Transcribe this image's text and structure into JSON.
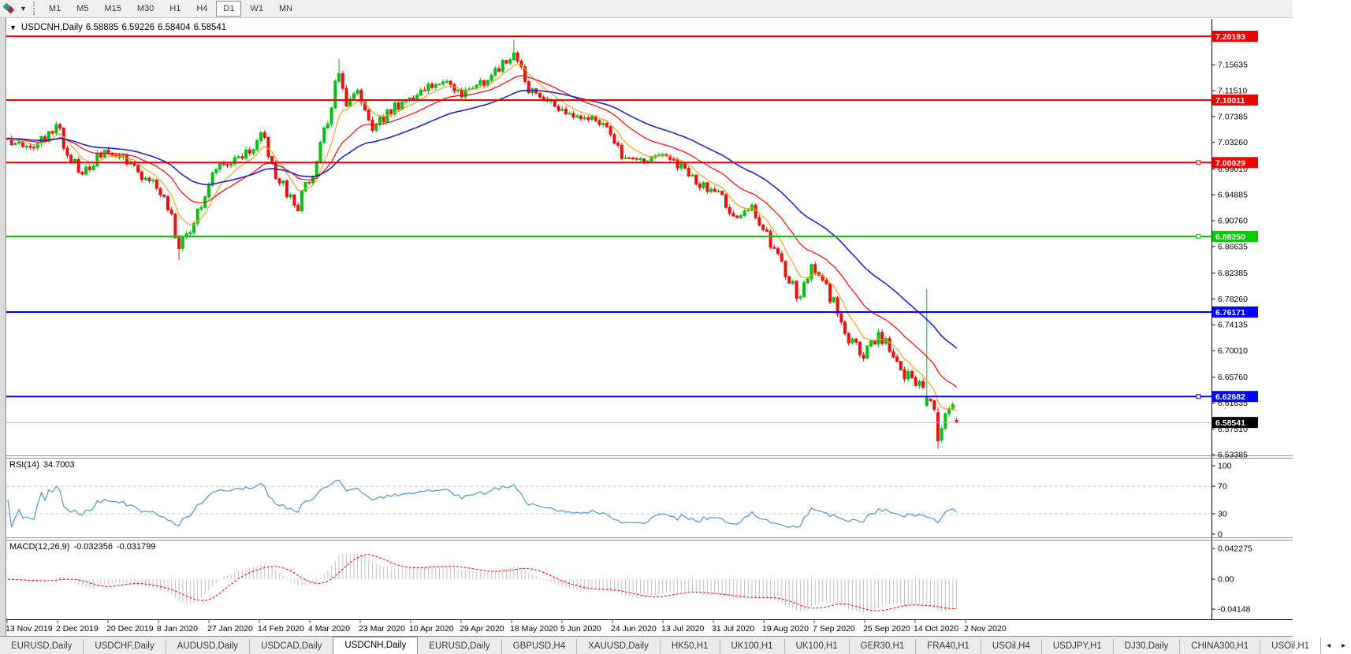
{
  "toolbar": {
    "timeframes": [
      {
        "label": "M1",
        "active": false
      },
      {
        "label": "M5",
        "active": false
      },
      {
        "label": "M15",
        "active": false
      },
      {
        "label": "M30",
        "active": false
      },
      {
        "label": "H1",
        "active": false
      },
      {
        "label": "H4",
        "active": false
      },
      {
        "label": "D1",
        "active": true
      },
      {
        "label": "W1",
        "active": false
      },
      {
        "label": "MN",
        "active": false
      }
    ]
  },
  "chart": {
    "title": {
      "dropdown": "▼",
      "symbol": "USDCNH,Daily",
      "open": "6.58885",
      "high": "6.59226",
      "low": "6.58404",
      "close": "6.58541"
    },
    "price_axis_ticks": [
      "7.15635",
      "7.11510",
      "7.07385",
      "7.03260",
      "6.99010",
      "6.94885",
      "6.90760",
      "6.86635",
      "6.82385",
      "6.78260",
      "6.74135",
      "6.70010",
      "6.65760",
      "6.61635",
      "6.57510",
      "6.53385"
    ],
    "hlines": [
      {
        "price": "7.20193",
        "value": 7.20193,
        "color": "#ee0000",
        "handle": false
      },
      {
        "price": "7.10011",
        "value": 7.10011,
        "color": "#ee0000",
        "handle": false
      },
      {
        "price": "7.00029",
        "value": 7.00029,
        "color": "#ee0000",
        "handle": true
      },
      {
        "price": "6.88250",
        "value": 6.8825,
        "color": "#00cc00",
        "handle": true
      },
      {
        "price": "6.76171",
        "value": 6.76171,
        "color": "#0000ff",
        "handle": false
      },
      {
        "price": "6.62682",
        "value": 6.62682,
        "color": "#0000ff",
        "handle": true
      }
    ],
    "current_price": {
      "label": "6.58541",
      "value": 6.58541
    },
    "series": {
      "count": 256,
      "anchors": [
        [
          0,
          7.035
        ],
        [
          6,
          7.025
        ],
        [
          13,
          7.055
        ],
        [
          17,
          7.01
        ],
        [
          20,
          6.985
        ],
        [
          26,
          7.02
        ],
        [
          32,
          7.005
        ],
        [
          37,
          6.975
        ],
        [
          42,
          6.945
        ],
        [
          46,
          6.868
        ],
        [
          50,
          6.905
        ],
        [
          56,
          6.99
        ],
        [
          61,
          7.005
        ],
        [
          65,
          7.02
        ],
        [
          68,
          7.05
        ],
        [
          72,
          6.975
        ],
        [
          78,
          6.93
        ],
        [
          82,
          6.99
        ],
        [
          84,
          7.03
        ],
        [
          86,
          7.06
        ],
        [
          88,
          7.12
        ],
        [
          89,
          7.145
        ],
        [
          91,
          7.1
        ],
        [
          94,
          7.115
        ],
        [
          98,
          7.06
        ],
        [
          101,
          7.07
        ],
        [
          104,
          7.09
        ],
        [
          109,
          7.1
        ],
        [
          114,
          7.125
        ],
        [
          118,
          7.132
        ],
        [
          122,
          7.11
        ],
        [
          127,
          7.125
        ],
        [
          132,
          7.15
        ],
        [
          135,
          7.165
        ],
        [
          136,
          7.172
        ],
        [
          138,
          7.15
        ],
        [
          139,
          7.13
        ],
        [
          144,
          7.1
        ],
        [
          149,
          7.08
        ],
        [
          155,
          7.073
        ],
        [
          160,
          7.058
        ],
        [
          163,
          7.03
        ],
        [
          165,
          7.012
        ],
        [
          171,
          7.003
        ],
        [
          176,
          7.012
        ],
        [
          180,
          6.995
        ],
        [
          186,
          6.968
        ],
        [
          192,
          6.945
        ],
        [
          196,
          6.915
        ],
        [
          200,
          6.932
        ],
        [
          204,
          6.88
        ],
        [
          207,
          6.85
        ],
        [
          210,
          6.81
        ],
        [
          213,
          6.78
        ],
        [
          216,
          6.83
        ],
        [
          219,
          6.82
        ],
        [
          221,
          6.79
        ],
        [
          224,
          6.75
        ],
        [
          226,
          6.72
        ],
        [
          230,
          6.688
        ],
        [
          234,
          6.73
        ],
        [
          237,
          6.7
        ],
        [
          241,
          6.662
        ],
        [
          245,
          6.64
        ],
        [
          247,
          6.62
        ],
        [
          249,
          6.6
        ],
        [
          250,
          6.558
        ],
        [
          252,
          6.6
        ],
        [
          254,
          6.615
        ],
        [
          255,
          6.5854
        ]
      ],
      "spikes": [
        {
          "i": 46,
          "low": 6.845
        },
        {
          "i": 89,
          "high": 7.1655
        },
        {
          "i": 136,
          "high": 7.1962
        },
        {
          "i": 247,
          "high": 6.799,
          "open": 6.612,
          "close": 6.627
        },
        {
          "i": 250,
          "low": 6.5435,
          "open": 6.601,
          "close": 6.556
        }
      ],
      "last_candle": {
        "open": 6.58885,
        "high": 6.59226,
        "low": 6.58404,
        "close": 6.58541
      }
    },
    "ma_lines": [
      {
        "name": "fast-ma",
        "period": 8,
        "color": "#efa318"
      },
      {
        "name": "medium-ma",
        "period": 22,
        "color": "#ff0000"
      },
      {
        "name": "slow-ma",
        "period": 45,
        "color": "#2323cc"
      }
    ],
    "colors": {
      "up": "#00c114",
      "down": "#ee1010",
      "current_line": "#b4b4b4",
      "current_box": "#000000"
    }
  },
  "rsi": {
    "name": "RSI(14)",
    "value": "34.7003",
    "period": 14,
    "axis": [
      {
        "label": "100",
        "v": 100
      },
      {
        "label": "70",
        "v": 70
      },
      {
        "label": "30",
        "v": 30
      },
      {
        "label": "0",
        "v": 0
      }
    ],
    "levels": [
      70,
      30
    ],
    "color": "#4f94cd"
  },
  "macd": {
    "name": "MACD(12,26,9)",
    "macd_value": "-0.032356",
    "signal_value": "-0.031799",
    "axis": [
      {
        "label": "0.042275",
        "v": 0.042275
      },
      {
        "label": "0.00",
        "v": 0
      },
      {
        "label": "-0.04148",
        "v": -0.04148
      }
    ],
    "hist_color": "#c3c3c3",
    "signal_color": "#ee0000"
  },
  "date_axis": [
    "13 Nov 2019",
    "2 Dec 2019",
    "20 Dec 2019",
    "8 Jan 2020",
    "27 Jan 2020",
    "14 Feb 2020",
    "4 Mar 2020",
    "23 Mar 2020",
    "10 Apr 2020",
    "29 Apr 2020",
    "18 May 2020",
    "5 Jun 2020",
    "24 Jun 2020",
    "13 Jul 2020",
    "31 Jul 2020",
    "19 Aug 2020",
    "7 Sep 2020",
    "25 Sep 2020",
    "14 Oct 2020",
    "2 Nov 2020"
  ],
  "tabs": {
    "items": [
      {
        "label": "EURUSD,Daily",
        "active": false
      },
      {
        "label": "USDCHF,Daily",
        "active": false
      },
      {
        "label": "AUDUSD,Daily",
        "active": false
      },
      {
        "label": "USDCAD,Daily",
        "active": false
      },
      {
        "label": "USDCNH,Daily",
        "active": true
      },
      {
        "label": "EURUSD,Daily",
        "active": false
      },
      {
        "label": "GBPUSD,H4",
        "active": false
      },
      {
        "label": "XAUUSD,Daily",
        "active": false
      },
      {
        "label": "HK50,H1",
        "active": false
      },
      {
        "label": "UK100,H1",
        "active": false
      },
      {
        "label": "UK100,H1",
        "active": false
      },
      {
        "label": "GER30,H1",
        "active": false
      },
      {
        "label": "FRA40,H1",
        "active": false
      },
      {
        "label": "USOil,H4",
        "active": false
      },
      {
        "label": "USDJPY,H1",
        "active": false
      },
      {
        "label": "DJ30,Daily",
        "active": false
      },
      {
        "label": "CHINA300,H1",
        "active": false
      },
      {
        "label": "USOil,H1",
        "active": false
      }
    ],
    "scroll_left": "◂",
    "scroll_right": "▸"
  }
}
